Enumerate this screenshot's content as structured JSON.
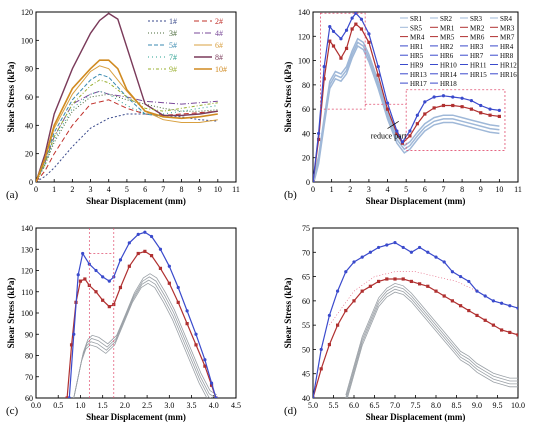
{
  "colors": {
    "panel_a": [
      "#3a4a8c",
      "#c0302a",
      "#4a6a3a",
      "#7a4a9a",
      "#3a8ab0",
      "#d8a040",
      "#2aa090",
      "#7a3a5a",
      "#9ab030",
      "#d08a20"
    ],
    "original": "#d06a88",
    "original_b": "#9fb8d8",
    "modified_1": "#3a4acc",
    "modified_2": "#b03030",
    "gray_series": "#9aa0a6",
    "dash_line": "#e05070"
  },
  "chart_data": [
    {
      "panel": "(a)",
      "type": "line",
      "xlabel": "Shear Displacement (mm)",
      "ylabel": "Shear Stress (kPa)",
      "xlim": [
        0,
        11
      ],
      "ylim": [
        0,
        120
      ],
      "xticks": [
        "0",
        "1",
        "2",
        "3",
        "4",
        "5",
        "6",
        "7",
        "8",
        "9",
        "10",
        "11"
      ],
      "yticks": [
        "0",
        "20",
        "40",
        "60",
        "80",
        "100",
        "120"
      ],
      "legend": [
        "1#",
        "2#",
        "3#",
        "4#",
        "5#",
        "6#",
        "7#",
        "8#",
        "9#",
        "10#"
      ],
      "legend_position": "top-right",
      "series": [
        {
          "name": "1#",
          "x": [
            0,
            0.5,
            1,
            2,
            3,
            4,
            5,
            6,
            7,
            8,
            9,
            10
          ],
          "y": [
            0,
            4,
            10,
            25,
            38,
            45,
            48,
            48,
            47,
            46,
            44,
            43
          ]
        },
        {
          "name": "2#",
          "x": [
            0,
            0.5,
            1,
            2,
            3,
            4,
            5,
            6,
            7,
            8,
            9,
            10
          ],
          "y": [
            0,
            8,
            20,
            40,
            55,
            58,
            52,
            48,
            47,
            48,
            49,
            50
          ]
        },
        {
          "name": "3#",
          "x": [
            0,
            0.5,
            1,
            2,
            3,
            4,
            5,
            6,
            7,
            8,
            9,
            10
          ],
          "y": [
            0,
            12,
            28,
            50,
            60,
            62,
            58,
            55,
            52,
            50,
            50,
            51
          ]
        },
        {
          "name": "4#",
          "x": [
            0,
            0.5,
            1,
            2,
            3,
            3.5,
            4,
            5,
            6,
            7,
            8,
            9,
            10
          ],
          "y": [
            0,
            14,
            32,
            55,
            62,
            64,
            62,
            60,
            57,
            56,
            55,
            56,
            57
          ]
        },
        {
          "name": "5#",
          "x": [
            0,
            0.5,
            1,
            2,
            3,
            3.5,
            4,
            5,
            6,
            7,
            8,
            9,
            10
          ],
          "y": [
            0,
            15,
            35,
            58,
            72,
            76,
            74,
            60,
            48,
            46,
            45,
            46,
            48
          ]
        },
        {
          "name": "6#",
          "x": [
            0,
            0.5,
            1,
            2,
            3,
            3.5,
            4,
            5,
            6,
            7,
            8,
            9,
            10
          ],
          "y": [
            0,
            16,
            38,
            62,
            78,
            82,
            80,
            64,
            50,
            44,
            42,
            42,
            44
          ]
        },
        {
          "name": "7#",
          "x": [
            0,
            0.5,
            1,
            2,
            3,
            3.5,
            4,
            5,
            6,
            7,
            8,
            9,
            10
          ],
          "y": [
            0,
            12,
            30,
            52,
            62,
            64,
            62,
            54,
            48,
            48,
            50,
            52,
            54
          ]
        },
        {
          "name": "8#",
          "x": [
            0,
            0.5,
            1,
            2,
            3,
            3.5,
            4,
            4.5,
            5,
            6,
            7,
            8,
            9,
            10
          ],
          "y": [
            0,
            20,
            48,
            80,
            105,
            114,
            119,
            115,
            95,
            55,
            47,
            47,
            48,
            50
          ]
        },
        {
          "name": "9#",
          "x": [
            0,
            0.5,
            1,
            2,
            3,
            3.5,
            4,
            5,
            6,
            7,
            8,
            9,
            10
          ],
          "y": [
            0,
            13,
            32,
            55,
            68,
            72,
            70,
            60,
            52,
            50,
            52,
            54,
            56
          ]
        },
        {
          "name": "10#",
          "x": [
            0,
            0.5,
            1,
            2,
            3,
            3.5,
            4,
            4.5,
            5,
            6,
            7,
            8,
            9,
            10
          ],
          "y": [
            0,
            17,
            40,
            66,
            80,
            86,
            86,
            80,
            65,
            50,
            46,
            45,
            46,
            48
          ]
        }
      ]
    },
    {
      "panel": "(b)",
      "type": "line",
      "xlabel": "Shear Displacement (mm)",
      "ylabel": "Shear Stress (kPa)",
      "xlim": [
        0,
        11
      ],
      "ylim": [
        0,
        140
      ],
      "xticks": [
        "0",
        "1",
        "2",
        "3",
        "4",
        "5",
        "6",
        "7",
        "8",
        "9",
        "10",
        "11"
      ],
      "yticks": [
        "0",
        "20",
        "40",
        "60",
        "80",
        "100",
        "120",
        "140"
      ],
      "legend_position": "top-right",
      "legend": [
        "SR1",
        "SR2",
        "SR3",
        "SR4",
        "SR5",
        "MR1",
        "MR2",
        "MR3",
        "MR4",
        "MR5",
        "MR6",
        "MR7",
        "HR1",
        "HR2",
        "HR3",
        "HR4",
        "HR5",
        "HR6",
        "HR7",
        "HR8",
        "HR9",
        "HR10",
        "HR11",
        "HR12",
        "HR13",
        "HR14",
        "HR15",
        "HR16",
        "HR17",
        "HR18"
      ],
      "annotation": "reduce part",
      "series": [
        {
          "name": "HR",
          "x": [
            0,
            0.3,
            0.6,
            0.9,
            1.1,
            1.5,
            1.8,
            2.1,
            2.3,
            2.6,
            3,
            3.5,
            4,
            4.5,
            4.8,
            5.2,
            5.6,
            6,
            6.5,
            7,
            7.5,
            8,
            8.5,
            9,
            9.5,
            10
          ],
          "y": [
            0,
            40,
            95,
            128,
            124,
            118,
            125,
            135,
            139,
            134,
            122,
            95,
            65,
            42,
            33,
            42,
            55,
            66,
            70,
            71,
            70,
            69,
            67,
            63,
            60,
            59
          ]
        },
        {
          "name": "MR",
          "x": [
            0,
            0.3,
            0.6,
            0.9,
            1.1,
            1.5,
            1.8,
            2.1,
            2.3,
            2.6,
            3,
            3.5,
            4,
            4.5,
            4.8,
            5.2,
            5.6,
            6,
            6.5,
            7,
            7.5,
            8,
            8.5,
            9,
            9.5,
            10
          ],
          "y": [
            0,
            35,
            85,
            116,
            112,
            102,
            110,
            126,
            130,
            126,
            115,
            88,
            60,
            40,
            32,
            38,
            48,
            56,
            61,
            63,
            63,
            62,
            60,
            57,
            55,
            54
          ]
        },
        {
          "name": "SR",
          "x": [
            0,
            0.3,
            0.6,
            0.9,
            1.2,
            1.5,
            1.8,
            2.1,
            2.4,
            2.7,
            3,
            3.5,
            4,
            4.5,
            4.9,
            5.2,
            5.6,
            6,
            6.5,
            7,
            7.5,
            8,
            8.5,
            9,
            9.5,
            10
          ],
          "y": [
            0,
            18,
            50,
            80,
            88,
            86,
            92,
            105,
            115,
            112,
            102,
            80,
            55,
            35,
            27,
            30,
            38,
            45,
            50,
            52,
            52,
            50,
            48,
            46,
            44,
            43
          ]
        }
      ]
    },
    {
      "panel": "(c)",
      "type": "line",
      "xlabel": "Shear Displacement (mm)",
      "ylabel": "Shear Stress (kPa)",
      "xlim": [
        0,
        4.5
      ],
      "ylim": [
        60,
        140
      ],
      "xticks": [
        "0.0",
        "0.5",
        "1.0",
        "1.5",
        "2.0",
        "2.5",
        "3.0",
        "3.5",
        "4.0",
        "4.5"
      ],
      "yticks": [
        "60",
        "70",
        "80",
        "90",
        "100",
        "110",
        "120",
        "130",
        "140"
      ],
      "series": [
        {
          "name": "HR",
          "x": [
            0.75,
            0.85,
            0.95,
            1.05,
            1.2,
            1.35,
            1.5,
            1.65,
            1.75,
            1.9,
            2.1,
            2.3,
            2.45,
            2.6,
            2.8,
            3.0,
            3.2,
            3.4,
            3.6,
            3.8,
            3.95,
            4.05
          ],
          "y": [
            60,
            90,
            118,
            128,
            123,
            120,
            117,
            115,
            117,
            125,
            133,
            137,
            138,
            136,
            130,
            122,
            112,
            101,
            90,
            78,
            67,
            60
          ]
        },
        {
          "name": "MR",
          "x": [
            0.7,
            0.8,
            0.9,
            1.0,
            1.1,
            1.2,
            1.35,
            1.5,
            1.65,
            1.75,
            1.9,
            2.1,
            2.3,
            2.45,
            2.6,
            2.8,
            3.0,
            3.2,
            3.4,
            3.6,
            3.8,
            3.95,
            4.05
          ],
          "y": [
            60,
            85,
            105,
            115,
            116,
            113,
            110,
            106,
            103,
            104,
            112,
            122,
            128,
            129,
            127,
            121,
            114,
            105,
            95,
            85,
            75,
            66,
            60
          ]
        },
        {
          "name": "SR",
          "x": [
            0.85,
            0.95,
            1.05,
            1.15,
            1.25,
            1.4,
            1.6,
            1.8,
            2.0,
            2.2,
            2.4,
            2.55,
            2.7,
            2.9,
            3.1,
            3.3,
            3.5,
            3.7,
            3.9,
            4.05
          ],
          "y": [
            60,
            70,
            80,
            86,
            88,
            87,
            84,
            88,
            98,
            108,
            115,
            117,
            115,
            108,
            100,
            90,
            80,
            70,
            62,
            60
          ]
        }
      ]
    },
    {
      "panel": "(d)",
      "type": "line",
      "xlabel": "Shear Displacement (mm)",
      "ylabel": "Shear Stress (kPa)",
      "xlim": [
        5.0,
        10.0
      ],
      "ylim": [
        40,
        75
      ],
      "xticks": [
        "5.0",
        "5.5",
        "6.0",
        "6.5",
        "7.0",
        "7.5",
        "8.0",
        "8.5",
        "9.0",
        "9.5",
        "10.0"
      ],
      "yticks": [
        "40",
        "45",
        "50",
        "55",
        "60",
        "65",
        "70",
        "75"
      ],
      "series": [
        {
          "name": "HR",
          "x": [
            5.0,
            5.2,
            5.4,
            5.6,
            5.8,
            6.0,
            6.2,
            6.4,
            6.6,
            6.8,
            7.0,
            7.2,
            7.4,
            7.6,
            7.8,
            8.0,
            8.2,
            8.4,
            8.6,
            8.8,
            9.0,
            9.2,
            9.4,
            9.6,
            9.8,
            10.0
          ],
          "y": [
            40,
            50,
            57,
            62,
            66,
            68,
            69,
            70,
            71,
            71.5,
            72,
            71,
            70,
            71,
            70,
            69,
            68,
            66,
            65,
            64,
            62,
            61,
            60,
            59.5,
            59,
            58.5
          ]
        },
        {
          "name": "MR",
          "x": [
            5.0,
            5.2,
            5.4,
            5.6,
            5.8,
            6.0,
            6.2,
            6.4,
            6.6,
            6.8,
            7.0,
            7.2,
            7.4,
            7.6,
            7.8,
            8.0,
            8.2,
            8.4,
            8.6,
            8.8,
            9.0,
            9.2,
            9.4,
            9.6,
            9.8,
            10.0
          ],
          "y": [
            40,
            46,
            51,
            55,
            58,
            60,
            62,
            63,
            64,
            64.5,
            64.5,
            64.5,
            64,
            63.5,
            63,
            62,
            61,
            60,
            59,
            58,
            57,
            56,
            55,
            54,
            53.5,
            53
          ]
        },
        {
          "name": "SR",
          "x": [
            5.8,
            6.0,
            6.2,
            6.4,
            6.6,
            6.8,
            7.0,
            7.2,
            7.4,
            7.6,
            7.8,
            8.0,
            8.2,
            8.4,
            8.6,
            8.8,
            9.0,
            9.2,
            9.4,
            9.6,
            9.8,
            10.0
          ],
          "y": [
            40,
            46,
            52,
            56,
            60,
            62,
            63,
            62.5,
            61,
            59,
            57,
            55,
            53,
            51,
            49,
            48,
            46.5,
            45.5,
            44.5,
            44,
            43.5,
            43.5
          ]
        }
      ]
    }
  ]
}
